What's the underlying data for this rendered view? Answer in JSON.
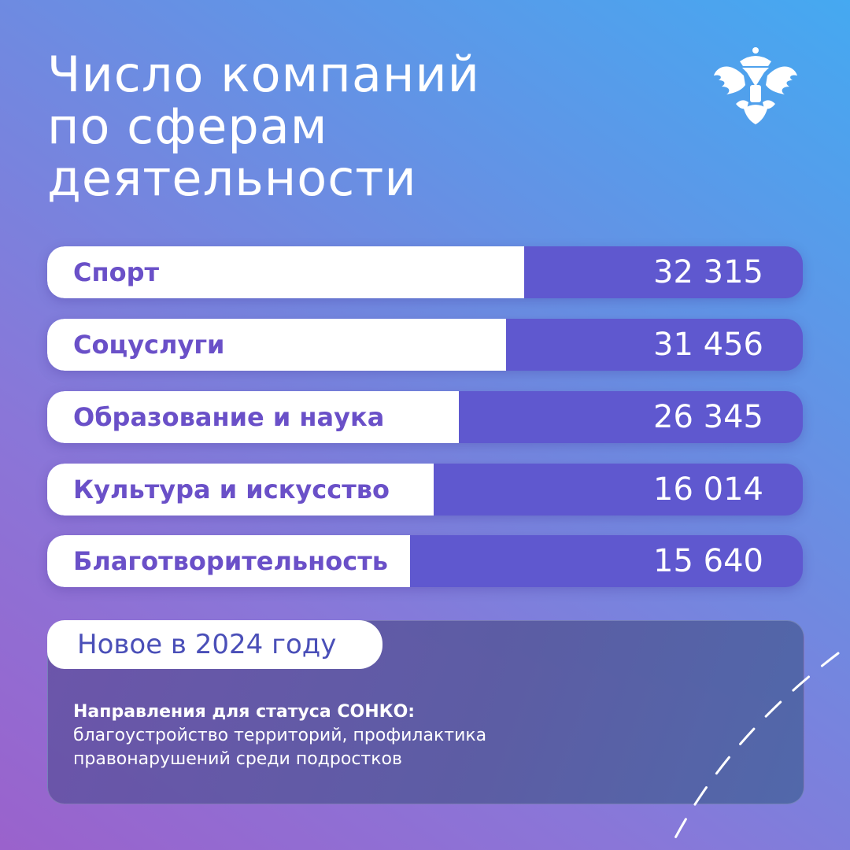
{
  "title_lines": [
    "Число компаний",
    "по сферам",
    "деятельности"
  ],
  "colors": {
    "bar": "#5f58cf",
    "label": "#6a50c8",
    "background_top": "#45a9f1",
    "background_bottom": "#9a62cc"
  },
  "emblem": {
    "icon": "double-headed-eagle-emblem"
  },
  "chart_data": {
    "type": "bar",
    "orientation": "horizontal",
    "categories": [
      "Спорт",
      "Соцуслуги",
      "Образование и наука",
      "Культура и искусство",
      "Благотворительность"
    ],
    "values": [
      32315,
      31456,
      26345,
      16014,
      15640
    ],
    "value_labels": [
      "32 315",
      "31 456",
      "26 345",
      "16 014",
      "15 640"
    ]
  },
  "note": {
    "badge": "Новое в 2024 году",
    "heading": "Направления для статуса СОНКО:",
    "text_lines": [
      "благоустройство территорий, профилактика",
      "правонарушений среди подростков"
    ]
  }
}
